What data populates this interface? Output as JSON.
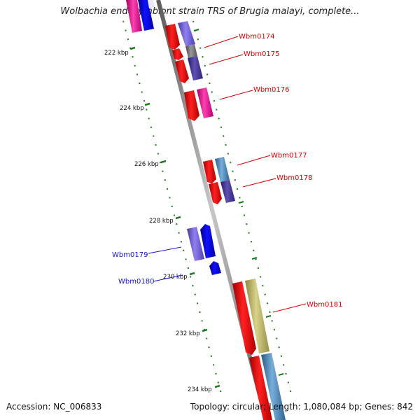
{
  "title": "Wolbachia endosymbiont strain TRS of Brugia malayi, complete...",
  "footer": {
    "accession": "Accession: NC_006833",
    "summary": "Topology: circular; Length: 1,080,084 bp; Genes: 842"
  },
  "ticks": [
    "222 kbp",
    "224 kbp",
    "226 kbp",
    "228 kbp",
    "230 kbp",
    "232 kbp",
    "234 kbp"
  ],
  "genes": [
    {
      "id": "Wbm0174",
      "color": "#d40000"
    },
    {
      "id": "Wbm0175",
      "color": "#d40000"
    },
    {
      "id": "Wbm0176",
      "color": "#d40000"
    },
    {
      "id": "Wbm0177",
      "color": "#d40000"
    },
    {
      "id": "Wbm0178",
      "color": "#d40000"
    },
    {
      "id": "Wbm0179",
      "color": "#1a14c8"
    },
    {
      "id": "Wbm0180",
      "color": "#1a14c8"
    },
    {
      "id": "Wbm0181",
      "color": "#d40000"
    }
  ],
  "colors": {
    "backbone": "#8a8a8a",
    "tick": "#1e7a1e",
    "gene_red": "#ff1a1a",
    "gene_blue": "#0000ff",
    "gene_violet": "#6a5acd",
    "gene_pink": "#ff1493",
    "gene_steelblue": "#4682b4",
    "gene_khaki": "#bdb76b",
    "gene_gray": "#777777"
  }
}
